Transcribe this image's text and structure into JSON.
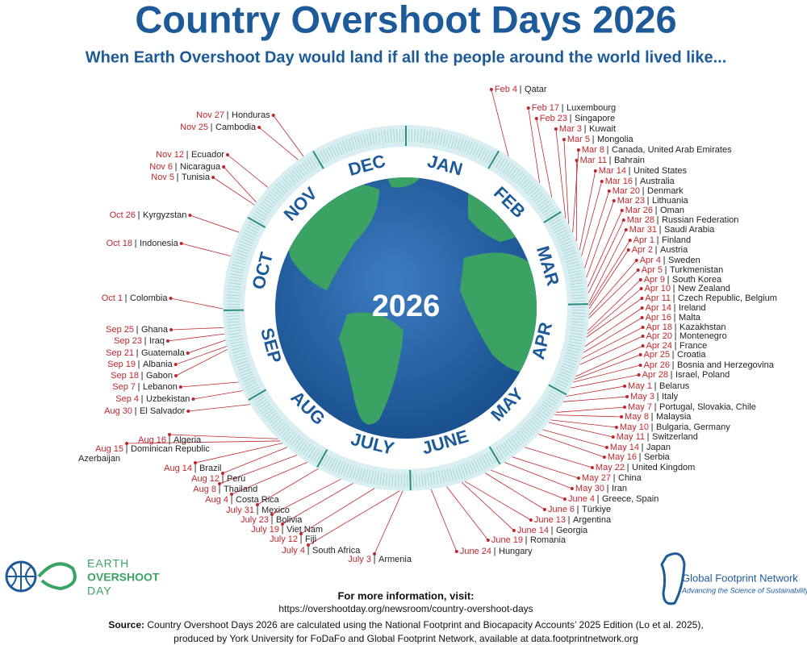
{
  "header": {
    "title": "Country Overshoot Days 2026",
    "subtitle": "When Earth Overshoot Day would land if all the people around the world lived like..."
  },
  "globe": {
    "year": "2026"
  },
  "months": [
    "JAN",
    "FEB",
    "MAR",
    "APR",
    "MAY",
    "JUNE",
    "JULY",
    "AUG",
    "SEP",
    "OCT",
    "NOV",
    "DEC"
  ],
  "entries": [
    {
      "date": "Feb 4",
      "country": "Qatar"
    },
    {
      "date": "Feb 17",
      "country": "Luxembourg"
    },
    {
      "date": "Feb 23",
      "country": "Singapore"
    },
    {
      "date": "Mar 3",
      "country": "Kuwait"
    },
    {
      "date": "Mar 5",
      "country": "Mongolia"
    },
    {
      "date": "Mar 8",
      "country": "Canada, United Arab Emirates"
    },
    {
      "date": "Mar 11",
      "country": "Bahrain"
    },
    {
      "date": "Mar 14",
      "country": "United States"
    },
    {
      "date": "Mar 16",
      "country": "Australia"
    },
    {
      "date": "Mar 20",
      "country": "Denmark"
    },
    {
      "date": "Mar 23",
      "country": "Lithuania"
    },
    {
      "date": "Mar 26",
      "country": "Oman"
    },
    {
      "date": "Mar 28",
      "country": "Russian Federation"
    },
    {
      "date": "Mar 31",
      "country": "Saudi Arabia"
    },
    {
      "date": "Apr 1",
      "country": "Finland"
    },
    {
      "date": "Apr 2",
      "country": "Austria"
    },
    {
      "date": "Apr 4",
      "country": "Sweden"
    },
    {
      "date": "Apr 5",
      "country": "Turkmenistan"
    },
    {
      "date": "Apr 9",
      "country": "South Korea"
    },
    {
      "date": "Apr 10",
      "country": "New Zealand"
    },
    {
      "date": "Apr 11",
      "country": "Czech Republic, Belgium"
    },
    {
      "date": "Apr 14",
      "country": "Ireland"
    },
    {
      "date": "Apr 16",
      "country": "Malta"
    },
    {
      "date": "Apr 18",
      "country": "Kazakhstan"
    },
    {
      "date": "Apr 20",
      "country": "Montenegro"
    },
    {
      "date": "Apr 24",
      "country": "France"
    },
    {
      "date": "Apr 25",
      "country": "Croatia"
    },
    {
      "date": "Apr 26",
      "country": "Bosnia and Herzegovina"
    },
    {
      "date": "Apr 28",
      "country": "Israel, Poland"
    },
    {
      "date": "May 1",
      "country": "Belarus"
    },
    {
      "date": "May 3",
      "country": "Italy"
    },
    {
      "date": "May 7",
      "country": "Portugal, Slovakia, Chile"
    },
    {
      "date": "May 8",
      "country": "Malaysia"
    },
    {
      "date": "May 10",
      "country": "Bulgaria, Germany"
    },
    {
      "date": "May 11",
      "country": "Switzerland"
    },
    {
      "date": "May 14",
      "country": "Japan"
    },
    {
      "date": "May 16",
      "country": "Serbia"
    },
    {
      "date": "May 22",
      "country": "United Kingdom"
    },
    {
      "date": "May 27",
      "country": "China"
    },
    {
      "date": "May 30",
      "country": "Iran"
    },
    {
      "date": "June 4",
      "country": "Greece, Spain"
    },
    {
      "date": "June 6",
      "country": "Türkiye"
    },
    {
      "date": "June 13",
      "country": "Argentina"
    },
    {
      "date": "June 14",
      "country": "Georgia"
    },
    {
      "date": "June 19",
      "country": "Romania"
    },
    {
      "date": "June 24",
      "country": "Hungary"
    },
    {
      "date": "July 3",
      "country": "Armenia"
    },
    {
      "date": "July 4",
      "country": "South Africa"
    },
    {
      "date": "July 12",
      "country": "Fiji"
    },
    {
      "date": "July 19",
      "country": "Viet Nam"
    },
    {
      "date": "July 23",
      "country": "Bolivia"
    },
    {
      "date": "July 31",
      "country": "Mexico"
    },
    {
      "date": "Aug 4",
      "country": "Costa Rica"
    },
    {
      "date": "Aug 8",
      "country": "Thailand"
    },
    {
      "date": "Aug 12",
      "country": "Peru"
    },
    {
      "date": "Aug 14",
      "country": "Brazil"
    },
    {
      "date": "Aug 15",
      "country": "Dominican Republic",
      "country_line2": "Azerbaijan"
    },
    {
      "date": "Aug 16",
      "country": "Algeria"
    },
    {
      "date": "Aug 30",
      "country": "El Salvador"
    },
    {
      "date": "Sep 4",
      "country": "Uzbekistan"
    },
    {
      "date": "Sep 7",
      "country": "Lebanon"
    },
    {
      "date": "Sep 18",
      "country": "Gabon"
    },
    {
      "date": "Sep 19",
      "country": "Albania"
    },
    {
      "date": "Sep 21",
      "country": "Guatemala"
    },
    {
      "date": "Sep 23",
      "country": "Iraq"
    },
    {
      "date": "Sep 25",
      "country": "Ghana"
    },
    {
      "date": "Oct 1",
      "country": "Colombia"
    },
    {
      "date": "Oct 18",
      "country": "Indonesia"
    },
    {
      "date": "Oct 26",
      "country": "Kyrgyzstan"
    },
    {
      "date": "Nov 5",
      "country": "Tunisia"
    },
    {
      "date": "Nov 6",
      "country": "Nicaragua"
    },
    {
      "date": "Nov 12",
      "country": "Ecuador"
    },
    {
      "date": "Nov 25",
      "country": "Cambodia"
    },
    {
      "date": "Nov 27",
      "country": "Honduras"
    }
  ],
  "footer": {
    "more_info": "For more information, visit:",
    "url": "https://overshootday.org/newsroom/country-overshoot-days",
    "source_label": "Source:",
    "source_lines": [
      "Country Overshoot Days 2026 are calculated using the National Footprint and Biocapacity Accounts’ 2025 Edition (Lo et al. 2025),",
      "produced by York University for FoDaFo and Global Footprint Network, available at data.footprintnetwork.org"
    ]
  },
  "logos": {
    "eod": [
      "EARTH",
      "OVERSHOOT",
      "DAY"
    ],
    "gfn_name": "Global Footprint Network",
    "gfn_tagline": "Advancing the Science of Sustainability"
  }
}
